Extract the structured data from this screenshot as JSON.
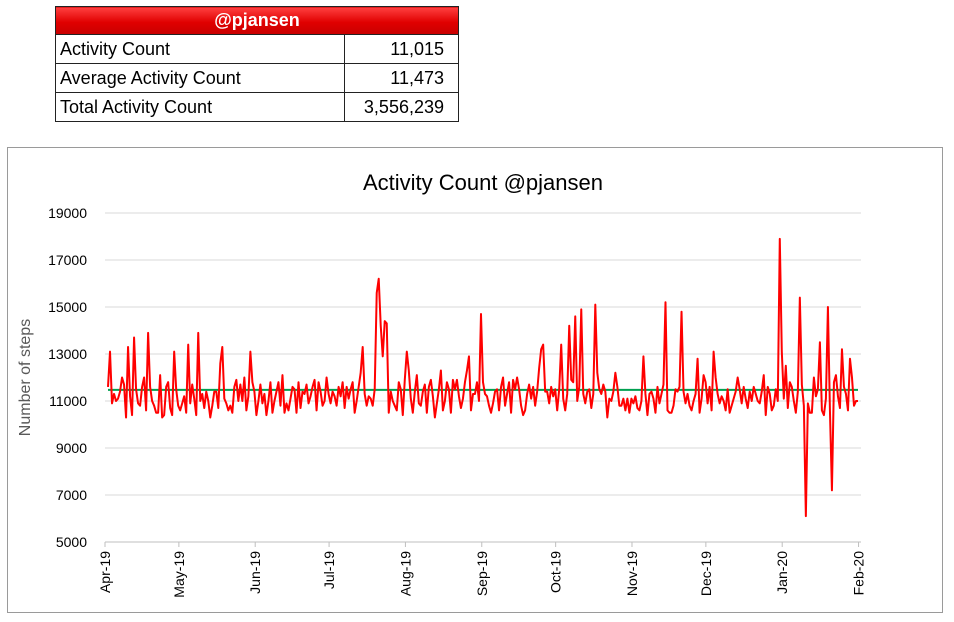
{
  "summary": {
    "header": "@pjansen",
    "rows": [
      {
        "label": "Activity Count",
        "value": "11,015"
      },
      {
        "label": "Average Activity Count",
        "value": "11,473"
      },
      {
        "label": "Total Activity Count",
        "value": "3,556,239"
      }
    ]
  },
  "chart_data": {
    "type": "line",
    "title": "Activity Count @pjansen",
    "xlabel": "",
    "ylabel": "Number of steps",
    "ylim": [
      5000,
      19000
    ],
    "yticks": [
      5000,
      7000,
      9000,
      11000,
      13000,
      15000,
      17000,
      19000
    ],
    "xticks": [
      "Apr-19",
      "May-19",
      "Jun-19",
      "Jul-19",
      "Aug-19",
      "Sep-19",
      "Oct-19",
      "Nov-19",
      "Dec-19",
      "Jan-20",
      "Feb-20"
    ],
    "x_start": "2019-04-01",
    "x_end": "2020-02-02",
    "grid": true,
    "colors": {
      "series": "#ff0000",
      "average": "#00a050"
    },
    "series": [
      {
        "values": [
          11600,
          13100,
          10900,
          11300,
          11000,
          11100,
          11400,
          12000,
          11700,
          10300,
          13300,
          11200,
          10400,
          13700,
          11500,
          10900,
          10800,
          11600,
          12000,
          10600,
          13900,
          11600,
          11000,
          10800,
          10500,
          10500,
          12100,
          10300,
          10400,
          11600,
          11800,
          10700,
          10400,
          13100,
          11500,
          10800,
          10600,
          10900,
          11200,
          10500,
          13400,
          10900,
          11700,
          11100,
          10400,
          13900,
          11000,
          11300,
          10700,
          11400,
          11000,
          10300,
          10800,
          11400,
          11400,
          10700,
          12600,
          13300,
          11100,
          10900,
          10600,
          10800,
          10500,
          11600,
          11900,
          11000,
          11700,
          11000,
          12000,
          10600,
          11200,
          13100,
          11800,
          11400,
          10400,
          11000,
          11700,
          10900,
          11300,
          10400,
          11000,
          11800,
          10500,
          11000,
          11400,
          11800,
          10800,
          12100,
          10500,
          10900,
          10600,
          11100,
          11600,
          11500,
          10500,
          11800,
          10700,
          11400,
          11300,
          11700,
          10900,
          11200,
          11600,
          11900,
          10600,
          11800,
          11400,
          10800,
          11000,
          12000,
          11300,
          10900,
          11400,
          11200,
          10800,
          11600,
          11200,
          11800,
          10700,
          11600,
          11100,
          11500,
          11800,
          10500,
          11000,
          11600,
          12200,
          13300,
          11300,
          10800,
          11200,
          11100,
          10800,
          11500,
          15600,
          16200,
          14200,
          12900,
          14400,
          14300,
          10500,
          11400,
          11000,
          10800,
          10600,
          11800,
          11500,
          10400,
          11900,
          13100,
          12300,
          11100,
          10500,
          11400,
          12100,
          10900,
          10800,
          11400,
          11700,
          10500,
          11600,
          11900,
          11200,
          10300,
          10900,
          11500,
          12300,
          10600,
          11000,
          11800,
          11500,
          10500,
          11900,
          11500,
          11900,
          11200,
          10700,
          11100,
          11800,
          12300,
          12900,
          10600,
          11300,
          11300,
          11800,
          11000,
          14700,
          11800,
          11300,
          11200,
          10800,
          10500,
          10900,
          11400,
          11500,
          10600,
          11600,
          12000,
          10800,
          11300,
          11800,
          10500,
          11900,
          11500,
          12000,
          11500,
          10800,
          10400,
          10600,
          11300,
          11700,
          11100,
          11600,
          10800,
          11400,
          12400,
          13200,
          13400,
          11400,
          11400,
          10900,
          11600,
          11200,
          11500,
          10600,
          11500,
          13400,
          11100,
          10600,
          11300,
          14200,
          11900,
          11800,
          14600,
          11000,
          11600,
          14900,
          11300,
          10900,
          11400,
          11500,
          10700,
          11300,
          15100,
          12200,
          11500,
          11300,
          11700,
          11400,
          10300,
          11100,
          11000,
          11400,
          12200,
          11600,
          10800,
          10800,
          11100,
          10600,
          11100,
          10500,
          11100,
          10900,
          11200,
          10700,
          10600,
          11000,
          12900,
          11300,
          10400,
          11300,
          11400,
          11100,
          10500,
          11600,
          10900,
          11300,
          11700,
          15200,
          10600,
          10500,
          10500,
          10800,
          11500,
          11400,
          11600,
          14800,
          11400,
          10900,
          11300,
          10800,
          10600,
          11000,
          11300,
          12800,
          10500,
          11100,
          12100,
          11800,
          10900,
          11600,
          10600,
          13100,
          12000,
          11300,
          10900,
          11200,
          11000,
          10600,
          11500,
          10500,
          10800,
          11100,
          11400,
          12000,
          11500,
          10900,
          11600,
          11100,
          10700,
          11400,
          11000,
          11600,
          11300,
          11000,
          10900,
          11400,
          12100,
          10400,
          11600,
          11300,
          10600,
          10800,
          11500,
          11000,
          17900,
          13100,
          11100,
          12500,
          10700,
          11800,
          11600,
          11000,
          10500,
          11400,
          15400,
          11700,
          10800,
          6100,
          10900,
          10500,
          10500,
          12000,
          11200,
          11500,
          13500,
          10600,
          10400,
          11100,
          15000,
          10600,
          7200,
          11800,
          12100,
          11200,
          10700,
          13200,
          11600,
          11300,
          10600,
          12800,
          12000,
          10800,
          11000,
          11000
        ]
      }
    ],
    "average": 11473
  }
}
